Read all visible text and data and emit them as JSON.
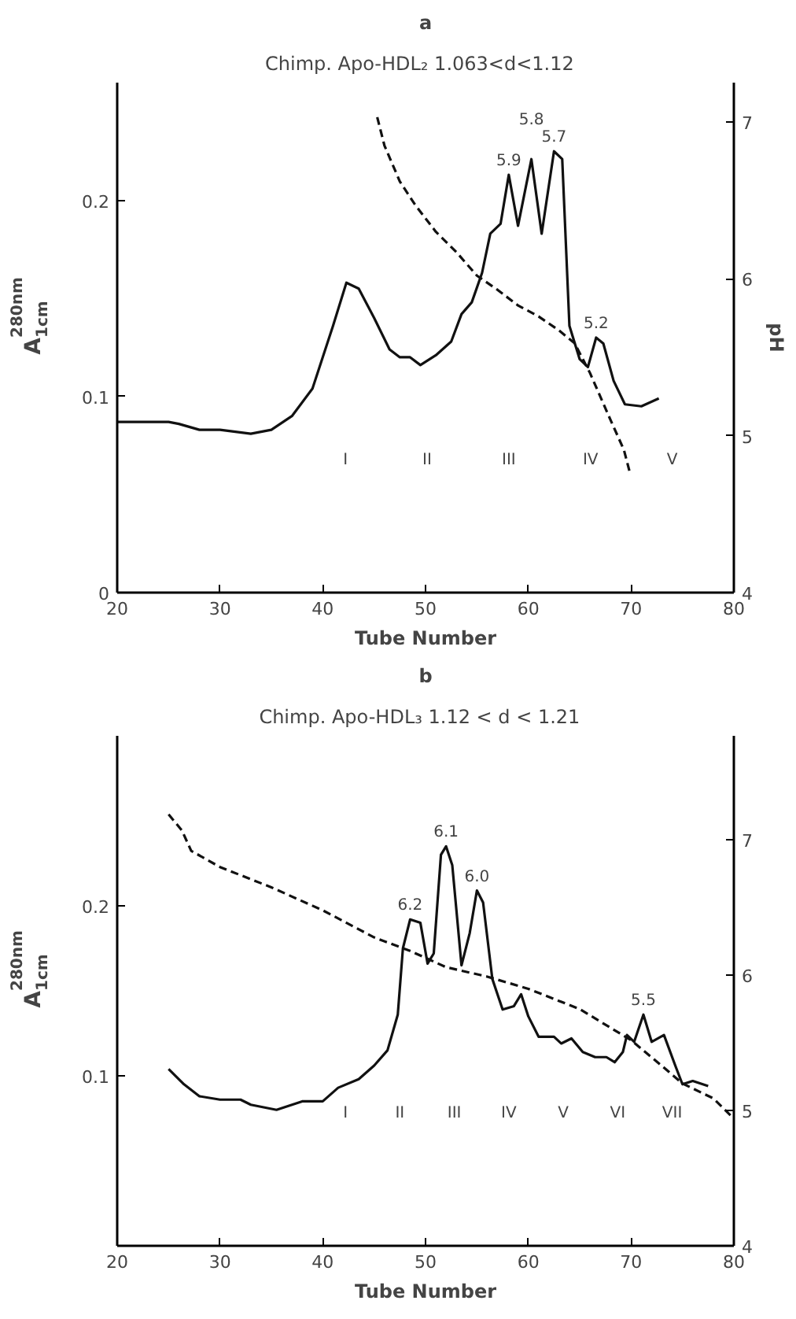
{
  "chart_data": [
    {
      "type": "line",
      "title": "a",
      "subtitle": "Chimp. Apo-HDL₂   1.063<d<1.12",
      "xlabel": "Tube Number",
      "ylabel": "A$^{280nm}$$_{1cm}$",
      "y2label": "pH",
      "xlim": [
        20,
        80
      ],
      "xticks": [
        20,
        30,
        40,
        50,
        60,
        70,
        80
      ],
      "ylim": [
        0,
        0.26
      ],
      "yticks": [
        0,
        0.1,
        0.2
      ],
      "y2lim": [
        4,
        7.25
      ],
      "y2ticks": [
        4,
        5,
        6,
        7
      ],
      "series": [
        {
          "color": "#111111",
          "line_style": "solid",
          "x": [
            20,
            25,
            26,
            28,
            30,
            33,
            35,
            37,
            39,
            41,
            42.3,
            43.5,
            45,
            46.5,
            47.5,
            48.5,
            49.5,
            51,
            52.5,
            53.5,
            54.5,
            55.5,
            56.3,
            57.3,
            58.1,
            59,
            60.3,
            61.3,
            62.5,
            63.3,
            64,
            65,
            65.8,
            66.6,
            67.3,
            68.3,
            69.4,
            71,
            72.7
          ],
          "values": [
            0.087,
            0.087,
            0.086,
            0.083,
            0.083,
            0.081,
            0.083,
            0.09,
            0.104,
            0.136,
            0.158,
            0.155,
            0.14,
            0.124,
            0.12,
            0.12,
            0.116,
            0.121,
            0.128,
            0.142,
            0.148,
            0.163,
            0.183,
            0.188,
            0.213,
            0.187,
            0.221,
            0.183,
            0.225,
            0.221,
            0.136,
            0.119,
            0.115,
            0.13,
            0.127,
            0.108,
            0.096,
            0.095,
            0.099
          ]
        },
        {
          "color": "#111111",
          "line_style": "dashed",
          "axis": "y2",
          "x": [
            45.3,
            46,
            47.5,
            49,
            51,
            53,
            55,
            57,
            59,
            61,
            63,
            64.5,
            66,
            68,
            69.3,
            69.9
          ],
          "values": [
            7.03,
            6.85,
            6.62,
            6.47,
            6.3,
            6.17,
            6.02,
            5.93,
            5.83,
            5.76,
            5.67,
            5.59,
            5.4,
            5.1,
            4.91,
            4.76
          ]
        }
      ],
      "annotations": [
        {
          "text": "5.9",
          "x": 58.1,
          "y": 0.213
        },
        {
          "text": "5.8",
          "x": 60.3,
          "y": 0.221
        },
        {
          "text": "5.7",
          "x": 62.5,
          "y": 0.225
        },
        {
          "text": "5.2",
          "x": 66.6,
          "y": 0.13
        },
        "I",
        "II",
        "III",
        "IV",
        "V"
      ]
    },
    {
      "type": "line",
      "title": "b",
      "subtitle": "Chimp. Apo-HDL₃   1.12 < d < 1.21",
      "xlabel": "Tube Number",
      "ylabel": "A$^{280nm}$$_{1cm}$",
      "xlim": [
        20,
        80
      ],
      "xticks": [
        20,
        30,
        40,
        50,
        60,
        70,
        80
      ],
      "ylim": [
        0,
        0.3
      ],
      "yticks": [
        0.1,
        0.2
      ],
      "y2lim": [
        4,
        7.77
      ],
      "y2ticks": [
        4,
        5,
        6,
        7
      ],
      "series": [
        {
          "color": "#111111",
          "line_style": "solid",
          "x": [
            25,
            26.5,
            28,
            30,
            32,
            33,
            35.5,
            38,
            40,
            41.5,
            43.5,
            45,
            46.3,
            47.3,
            47.8,
            48.5,
            49.5,
            50.2,
            50.8,
            51.5,
            52,
            52.6,
            53.5,
            54.3,
            55,
            55.6,
            56.5,
            57.5,
            58.6,
            59.3,
            60,
            61,
            62.5,
            63.2,
            64.2,
            65.3,
            66.5,
            67.6,
            68.4,
            69.2,
            69.6,
            70.3,
            71.2,
            72,
            73.2,
            74.3,
            75,
            76,
            77.5
          ],
          "values": [
            0.104,
            0.095,
            0.088,
            0.086,
            0.086,
            0.083,
            0.08,
            0.085,
            0.085,
            0.093,
            0.098,
            0.106,
            0.115,
            0.136,
            0.175,
            0.192,
            0.19,
            0.166,
            0.172,
            0.23,
            0.235,
            0.224,
            0.165,
            0.184,
            0.209,
            0.202,
            0.157,
            0.139,
            0.141,
            0.148,
            0.135,
            0.123,
            0.123,
            0.119,
            0.122,
            0.114,
            0.111,
            0.111,
            0.108,
            0.114,
            0.124,
            0.12,
            0.136,
            0.12,
            0.124,
            0.106,
            0.095,
            0.097,
            0.094
          ]
        },
        {
          "color": "#111111",
          "line_style": "dashed",
          "axis": "y2",
          "x": [
            25,
            26.3,
            27.2,
            30,
            35,
            40,
            45,
            48.5,
            52,
            56,
            60,
            65,
            70,
            73,
            75,
            78,
            80
          ],
          "values": [
            7.19,
            7.07,
            6.92,
            6.8,
            6.65,
            6.48,
            6.28,
            6.18,
            6.06,
            5.99,
            5.9,
            5.75,
            5.52,
            5.33,
            5.2,
            5.09,
            4.94
          ]
        }
      ],
      "annotations": [
        {
          "text": "6.2",
          "x": 48.5,
          "y": 0.192
        },
        {
          "text": "6.1",
          "x": 52,
          "y": 0.235
        },
        {
          "text": "6.0",
          "x": 55,
          "y": 0.209
        },
        {
          "text": "5.5",
          "x": 71.2,
          "y": 0.136
        },
        "I",
        "II",
        "III",
        "IV",
        "V",
        "VI",
        "VII"
      ]
    }
  ]
}
